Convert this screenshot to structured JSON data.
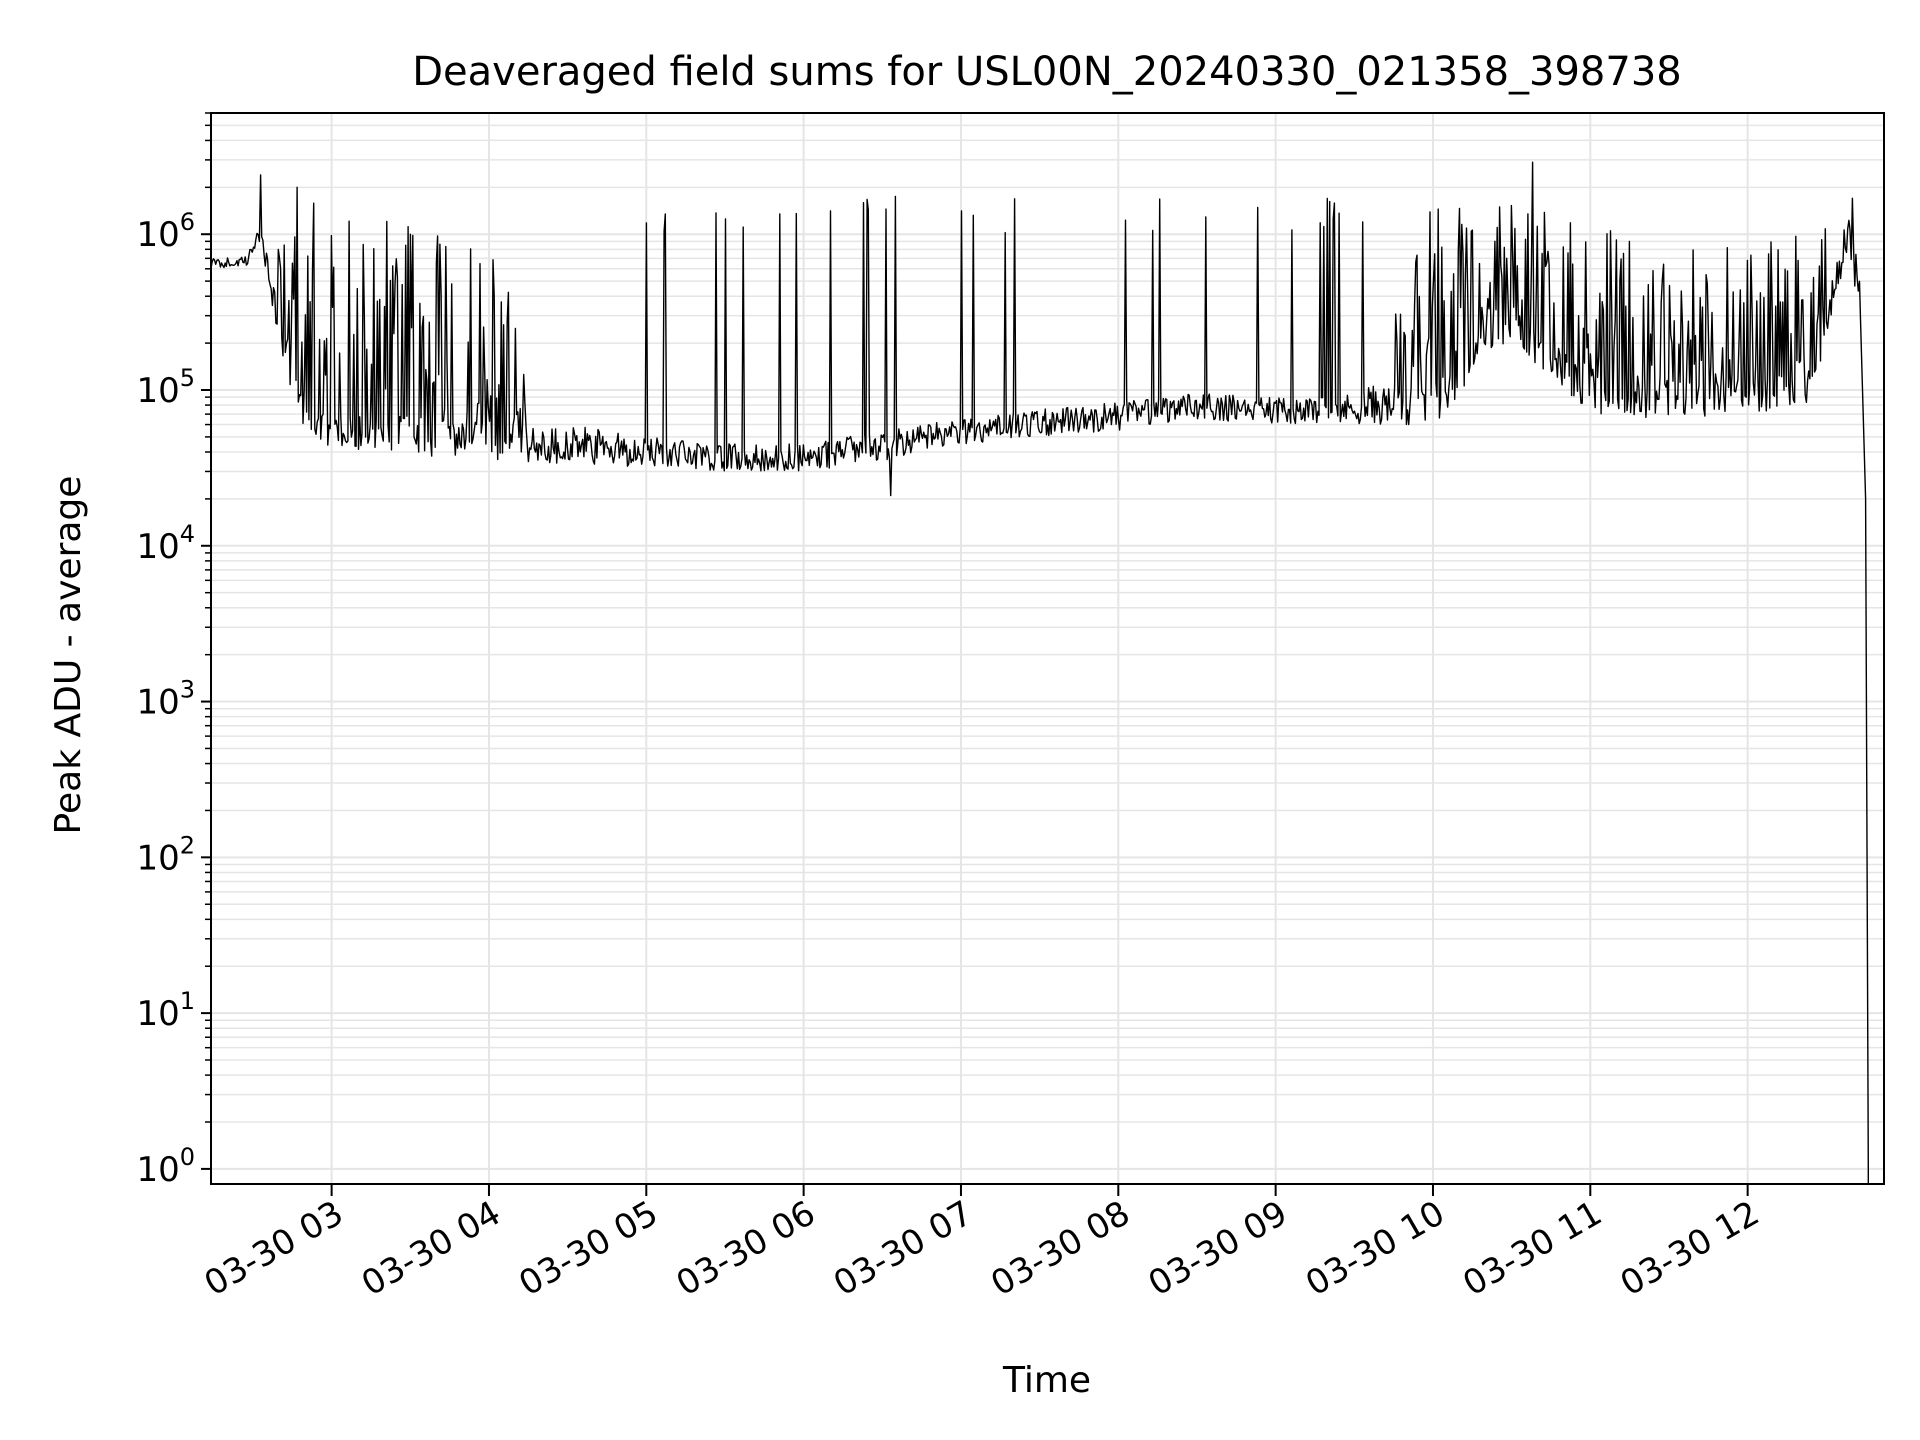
{
  "chart_data": {
    "type": "line",
    "title": "Deaveraged field sums for USL00N_20240330_021358_398738",
    "xlabel": "Time",
    "ylabel": "Peak ADU - average",
    "yscale": "log",
    "ylim": [
      0.8,
      6000000
    ],
    "xlim": [
      "03-30 02:14",
      "03-30 12:52"
    ],
    "x_ticks": [
      {
        "label": "03-30 03",
        "value": "03-30 03:00"
      },
      {
        "label": "03-30 04",
        "value": "03-30 04:00"
      },
      {
        "label": "03-30 05",
        "value": "03-30 05:00"
      },
      {
        "label": "03-30 06",
        "value": "03-30 06:00"
      },
      {
        "label": "03-30 07",
        "value": "03-30 07:00"
      },
      {
        "label": "03-30 08",
        "value": "03-30 08:00"
      },
      {
        "label": "03-30 09",
        "value": "03-30 09:00"
      },
      {
        "label": "03-30 10",
        "value": "03-30 10:00"
      },
      {
        "label": "03-30 11",
        "value": "03-30 11:00"
      },
      {
        "label": "03-30 12",
        "value": "03-30 12:00"
      }
    ],
    "y_ticks": [
      {
        "base": "10",
        "exp": "0",
        "value": 1
      },
      {
        "base": "10",
        "exp": "1",
        "value": 10
      },
      {
        "base": "10",
        "exp": "2",
        "value": 100
      },
      {
        "base": "10",
        "exp": "3",
        "value": 1000
      },
      {
        "base": "10",
        "exp": "4",
        "value": 10000
      },
      {
        "base": "10",
        "exp": "5",
        "value": 100000
      },
      {
        "base": "10",
        "exp": "6",
        "value": 1000000
      }
    ],
    "grid": true,
    "line_color": "#000000",
    "grid_color": "#e5e5e5",
    "series": [
      {
        "baseline_envelope": [
          {
            "x": "03-30 02:14",
            "low": 600000,
            "high": 700000
          },
          {
            "x": "03-30 02:28",
            "low": 620000,
            "high": 720000
          },
          {
            "x": "03-30 02:32",
            "low": 900000,
            "high": 1200000
          },
          {
            "x": "03-30 02:40",
            "low": 200000,
            "high": 1600000
          },
          {
            "x": "03-30 02:48",
            "low": 60000,
            "high": 1800000
          },
          {
            "x": "03-30 03:00",
            "low": 40000,
            "high": 1500000
          },
          {
            "x": "03-30 03:30",
            "low": 38000,
            "high": 1400000
          },
          {
            "x": "03-30 04:00",
            "low": 35000,
            "high": 900000
          },
          {
            "x": "03-30 04:30",
            "low": 33000,
            "high": 60000
          },
          {
            "x": "03-30 05:00",
            "low": 32000,
            "high": 50000
          },
          {
            "x": "03-30 05:30",
            "low": 30000,
            "high": 45000
          },
          {
            "x": "03-30 06:00",
            "low": 30000,
            "high": 45000
          },
          {
            "x": "03-30 06:30",
            "low": 35000,
            "high": 55000
          },
          {
            "x": "03-30 07:00",
            "low": 45000,
            "high": 65000
          },
          {
            "x": "03-30 07:30",
            "low": 50000,
            "high": 75000
          },
          {
            "x": "03-30 08:00",
            "low": 55000,
            "high": 85000
          },
          {
            "x": "03-30 08:30",
            "low": 65000,
            "high": 95000
          },
          {
            "x": "03-30 09:00",
            "low": 60000,
            "high": 90000
          },
          {
            "x": "03-30 09:30",
            "low": 60000,
            "high": 95000
          },
          {
            "x": "03-30 10:00",
            "low": 60000,
            "high": 1500000
          },
          {
            "x": "03-30 10:30",
            "low": 200000,
            "high": 1600000
          },
          {
            "x": "03-30 11:00",
            "low": 70000,
            "high": 1200000
          },
          {
            "x": "03-30 11:30",
            "low": 65000,
            "high": 1000000
          },
          {
            "x": "03-30 12:00",
            "low": 70000,
            "high": 900000
          },
          {
            "x": "03-30 12:25",
            "low": 80000,
            "high": 1000000
          },
          {
            "x": "03-30 12:38",
            "low": 800000,
            "high": 1600000
          },
          {
            "x": "03-30 12:43",
            "low": 300000,
            "high": 600000
          },
          {
            "x": "03-30 12:46",
            "low": 1,
            "high": 1
          }
        ],
        "notable_points": [
          {
            "x": "03-30 02:33",
            "y": 2400000
          },
          {
            "x": "03-30 02:47",
            "y": 2000000
          },
          {
            "x": "03-30 06:33",
            "y": 21000
          },
          {
            "x": "03-30 10:38",
            "y": 2900000
          },
          {
            "x": "03-30 12:40",
            "y": 1700000
          }
        ]
      }
    ]
  }
}
